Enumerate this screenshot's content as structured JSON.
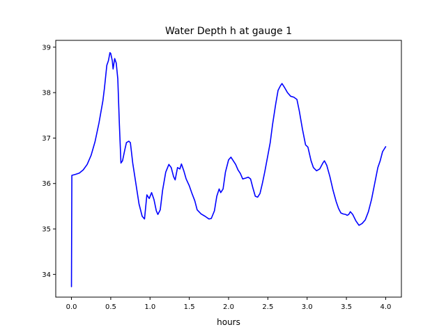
{
  "chart_data": {
    "type": "line",
    "title": "Water Depth h at gauge 1",
    "xlabel": "hours",
    "ylabel": "",
    "xlim": [
      -0.2,
      4.2
    ],
    "ylim": [
      33.5,
      39.15
    ],
    "grid": false,
    "x_ticks": [
      0.0,
      0.5,
      1.0,
      1.5,
      2.0,
      2.5,
      3.0,
      3.5,
      4.0
    ],
    "x_tick_labels": [
      "0.0",
      "0.5",
      "1.0",
      "1.5",
      "2.0",
      "2.5",
      "3.0",
      "3.5",
      "4.0"
    ],
    "y_ticks": [
      34,
      35,
      36,
      37,
      38,
      39
    ],
    "y_tick_labels": [
      "34",
      "35",
      "36",
      "37",
      "38",
      "39"
    ],
    "series": [
      {
        "color": "#0000ff",
        "points": [
          [
            0.0,
            33.73
          ],
          [
            0.005,
            36.18
          ],
          [
            0.05,
            36.2
          ],
          [
            0.1,
            36.23
          ],
          [
            0.15,
            36.3
          ],
          [
            0.2,
            36.42
          ],
          [
            0.25,
            36.62
          ],
          [
            0.3,
            36.92
          ],
          [
            0.35,
            37.33
          ],
          [
            0.4,
            37.82
          ],
          [
            0.42,
            38.1
          ],
          [
            0.45,
            38.6
          ],
          [
            0.47,
            38.7
          ],
          [
            0.49,
            38.88
          ],
          [
            0.5,
            38.86
          ],
          [
            0.52,
            38.7
          ],
          [
            0.53,
            38.52
          ],
          [
            0.55,
            38.75
          ],
          [
            0.57,
            38.65
          ],
          [
            0.59,
            38.3
          ],
          [
            0.61,
            37.3
          ],
          [
            0.63,
            36.45
          ],
          [
            0.65,
            36.5
          ],
          [
            0.68,
            36.75
          ],
          [
            0.7,
            36.9
          ],
          [
            0.73,
            36.93
          ],
          [
            0.75,
            36.9
          ],
          [
            0.78,
            36.45
          ],
          [
            0.82,
            36.0
          ],
          [
            0.86,
            35.55
          ],
          [
            0.9,
            35.28
          ],
          [
            0.93,
            35.22
          ],
          [
            0.96,
            35.75
          ],
          [
            0.99,
            35.67
          ],
          [
            1.02,
            35.8
          ],
          [
            1.05,
            35.65
          ],
          [
            1.08,
            35.4
          ],
          [
            1.1,
            35.32
          ],
          [
            1.13,
            35.42
          ],
          [
            1.16,
            35.85
          ],
          [
            1.2,
            36.25
          ],
          [
            1.24,
            36.42
          ],
          [
            1.27,
            36.35
          ],
          [
            1.3,
            36.15
          ],
          [
            1.32,
            36.08
          ],
          [
            1.35,
            36.35
          ],
          [
            1.38,
            36.32
          ],
          [
            1.4,
            36.43
          ],
          [
            1.43,
            36.28
          ],
          [
            1.46,
            36.1
          ],
          [
            1.5,
            35.95
          ],
          [
            1.53,
            35.8
          ],
          [
            1.57,
            35.62
          ],
          [
            1.6,
            35.42
          ],
          [
            1.65,
            35.33
          ],
          [
            1.7,
            35.28
          ],
          [
            1.75,
            35.22
          ],
          [
            1.78,
            35.23
          ],
          [
            1.82,
            35.4
          ],
          [
            1.85,
            35.72
          ],
          [
            1.88,
            35.88
          ],
          [
            1.9,
            35.8
          ],
          [
            1.93,
            35.88
          ],
          [
            1.96,
            36.25
          ],
          [
            2.0,
            36.52
          ],
          [
            2.03,
            36.58
          ],
          [
            2.06,
            36.5
          ],
          [
            2.09,
            36.42
          ],
          [
            2.12,
            36.3
          ],
          [
            2.15,
            36.22
          ],
          [
            2.18,
            36.1
          ],
          [
            2.22,
            36.12
          ],
          [
            2.25,
            36.14
          ],
          [
            2.28,
            36.1
          ],
          [
            2.31,
            35.9
          ],
          [
            2.34,
            35.72
          ],
          [
            2.37,
            35.7
          ],
          [
            2.4,
            35.78
          ],
          [
            2.43,
            36.0
          ],
          [
            2.46,
            36.25
          ],
          [
            2.5,
            36.62
          ],
          [
            2.53,
            36.9
          ],
          [
            2.56,
            37.3
          ],
          [
            2.6,
            37.75
          ],
          [
            2.63,
            38.05
          ],
          [
            2.66,
            38.15
          ],
          [
            2.68,
            38.2
          ],
          [
            2.71,
            38.12
          ],
          [
            2.75,
            38.0
          ],
          [
            2.79,
            37.92
          ],
          [
            2.83,
            37.9
          ],
          [
            2.87,
            37.85
          ],
          [
            2.9,
            37.6
          ],
          [
            2.94,
            37.2
          ],
          [
            2.98,
            36.85
          ],
          [
            3.01,
            36.8
          ],
          [
            3.05,
            36.5
          ],
          [
            3.08,
            36.35
          ],
          [
            3.12,
            36.28
          ],
          [
            3.16,
            36.32
          ],
          [
            3.2,
            36.45
          ],
          [
            3.22,
            36.5
          ],
          [
            3.25,
            36.4
          ],
          [
            3.29,
            36.15
          ],
          [
            3.33,
            35.85
          ],
          [
            3.37,
            35.6
          ],
          [
            3.4,
            35.45
          ],
          [
            3.43,
            35.35
          ],
          [
            3.46,
            35.33
          ],
          [
            3.49,
            35.32
          ],
          [
            3.51,
            35.3
          ],
          [
            3.53,
            35.32
          ],
          [
            3.55,
            35.38
          ],
          [
            3.58,
            35.32
          ],
          [
            3.62,
            35.18
          ],
          [
            3.66,
            35.08
          ],
          [
            3.7,
            35.12
          ],
          [
            3.74,
            35.2
          ],
          [
            3.78,
            35.38
          ],
          [
            3.82,
            35.65
          ],
          [
            3.86,
            36.0
          ],
          [
            3.9,
            36.35
          ],
          [
            3.93,
            36.5
          ],
          [
            3.96,
            36.7
          ],
          [
            4.0,
            36.81
          ]
        ]
      }
    ]
  }
}
